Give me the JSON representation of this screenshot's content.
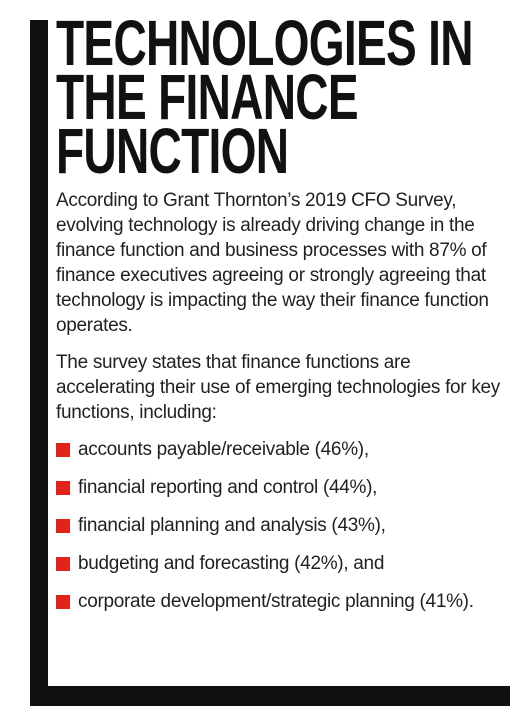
{
  "header": {
    "title_lines": [
      "TECHNOLOGIES IN",
      "THE FINANCE",
      "FUNCTION"
    ]
  },
  "body": {
    "paragraphs": [
      "According to Grant Thornton’s 2019 CFO Survey, evolving technology is already driving change in the finance function and business processes with 87% of finance executives agreeing or strongly agreeing that technology is impacting the way their finance function operates.",
      "The survey states that finance functions are accelerating their use of emerging technologies for key functions, including:"
    ],
    "bullets": [
      "accounts payable/receivable (46%),",
      "financial reporting and control (44%),",
      "financial planning and analysis (43%),",
      "budgeting and forecasting (42%), and",
      "corporate development/strategic planning (41%)."
    ]
  }
}
